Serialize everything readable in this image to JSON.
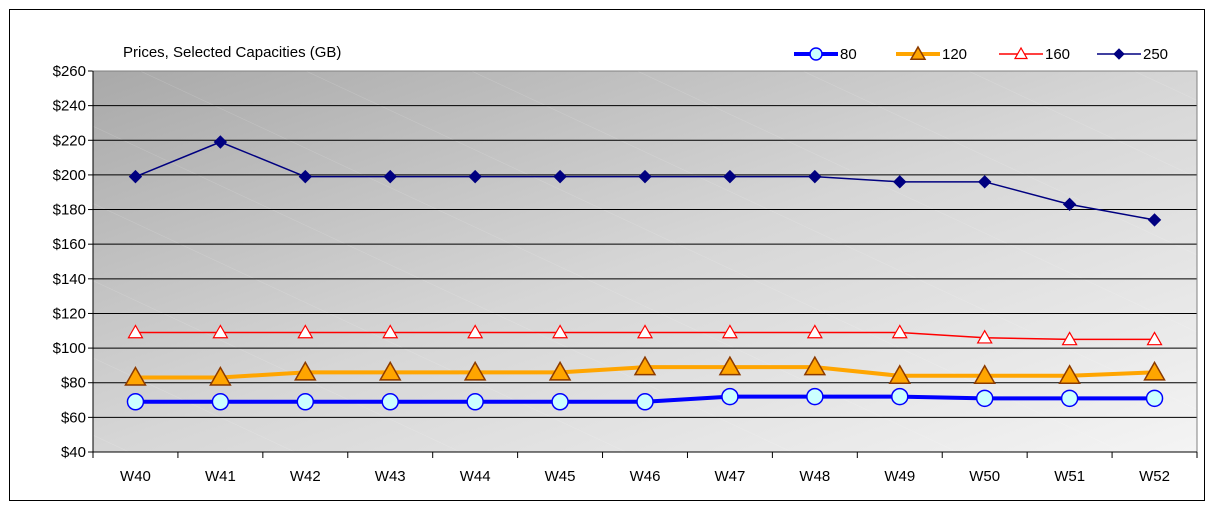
{
  "chart_data": {
    "type": "line",
    "title": "Prices, Selected Capacities (GB)",
    "xlabel": "",
    "ylabel": "",
    "categories": [
      "W40",
      "W41",
      "W42",
      "W43",
      "W44",
      "W45",
      "W46",
      "W47",
      "W48",
      "W49",
      "W50",
      "W51",
      "W52"
    ],
    "ylim": [
      40,
      260
    ],
    "ytick_step": 20,
    "ytick_prefix": "$",
    "grid": true,
    "legend_position": "top-right",
    "series": [
      {
        "name": "80",
        "color": "#0000ff",
        "marker": "circle",
        "values": [
          69,
          69,
          69,
          69,
          69,
          69,
          69,
          72,
          72,
          72,
          71,
          71,
          71
        ]
      },
      {
        "name": "120",
        "color": "#ffa500",
        "marker": "triangle",
        "values": [
          83,
          83,
          86,
          86,
          86,
          86,
          89,
          89,
          89,
          84,
          84,
          84,
          86
        ]
      },
      {
        "name": "160",
        "color": "#ff0000",
        "marker": "triangle-open",
        "values": [
          109,
          109,
          109,
          109,
          109,
          109,
          109,
          109,
          109,
          109,
          106,
          105,
          105
        ]
      },
      {
        "name": "250",
        "color": "#000080",
        "marker": "diamond",
        "values": [
          199,
          219,
          199,
          199,
          199,
          199,
          199,
          199,
          199,
          196,
          196,
          183,
          174
        ]
      }
    ]
  }
}
